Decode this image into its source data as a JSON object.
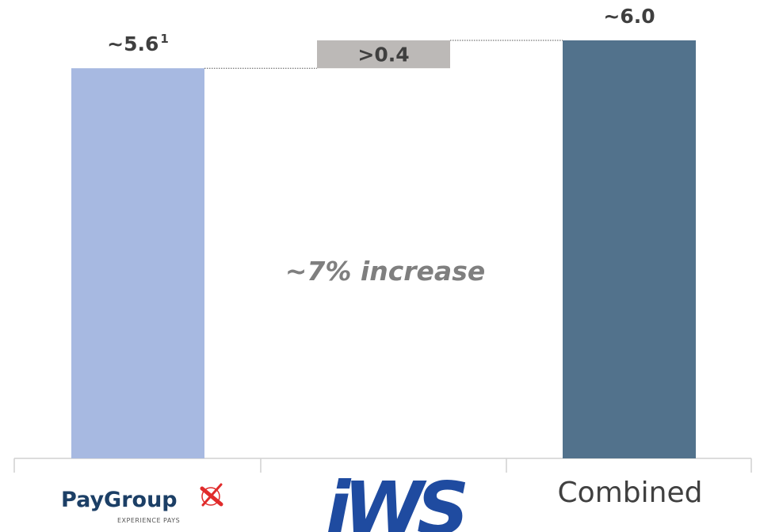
{
  "chart_data": {
    "type": "bar",
    "subtype": "waterfall",
    "categories": [
      "PayGroup",
      "iWS",
      "Combined"
    ],
    "bars": [
      {
        "category": "PayGroup",
        "kind": "total",
        "value": 5.6,
        "label": "~5.6",
        "footnote": "1",
        "color": "#a7b9e1"
      },
      {
        "category": "iWS",
        "kind": "increment",
        "base": 5.6,
        "value": 0.4,
        "label": ">0.4",
        "color": "#bcb9b7"
      },
      {
        "category": "Combined",
        "kind": "total",
        "value": 6.0,
        "label": "~6.0",
        "color": "#52728c"
      }
    ],
    "annotation": "~7% increase",
    "axis_labels": {
      "paygroup_logo_text": "PayGroup",
      "paygroup_logo_tagline": "EXPERIENCE PAYS",
      "iws_logo_text": "iWS",
      "combined": "Combined"
    },
    "ylim": [
      0,
      6.0
    ],
    "grid": false,
    "legend": "none"
  }
}
